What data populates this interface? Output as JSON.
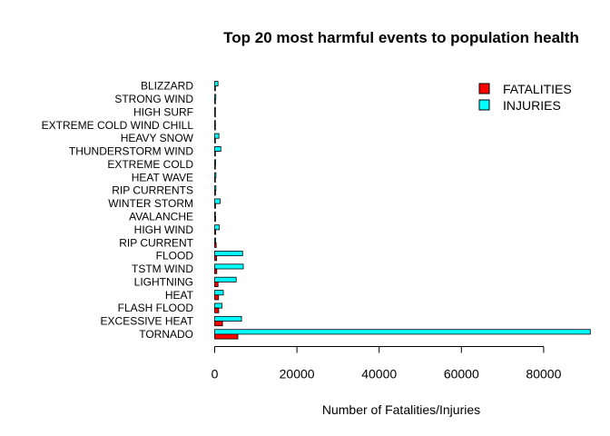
{
  "chart_data": {
    "type": "bar",
    "orientation": "horizontal",
    "title": "Top 20 most harmful events to population health",
    "xlabel": "Number of Fatalities/Injuries",
    "ylabel": "",
    "xlim": [
      0,
      91500
    ],
    "xticks": [
      0,
      20000,
      40000,
      60000,
      80000
    ],
    "xtick_labels": [
      "0",
      "20000",
      "40000",
      "60000",
      "80000"
    ],
    "legend_position": "top-right",
    "grid": false,
    "categories": [
      "TORNADO",
      "EXCESSIVE HEAT",
      "FLASH FLOOD",
      "HEAT",
      "LIGHTNING",
      "TSTM WIND",
      "FLOOD",
      "RIP CURRENT",
      "HIGH WIND",
      "AVALANCHE",
      "WINTER STORM",
      "RIP CURRENTS",
      "HEAT WAVE",
      "EXTREME COLD",
      "THUNDERSTORM WIND",
      "HEAVY SNOW",
      "EXTREME COLD WIND CHILL",
      "HIGH SURF",
      "STRONG WIND",
      "BLIZZARD"
    ],
    "series": [
      {
        "name": "FATALITIES",
        "color": "#ff0000",
        "values": [
          5633,
          1903,
          978,
          937,
          816,
          504,
          470,
          368,
          248,
          224,
          206,
          204,
          172,
          160,
          133,
          127,
          125,
          101,
          103,
          101
        ]
      },
      {
        "name": "INJURIES",
        "color": "#00ffff",
        "values": [
          91346,
          6525,
          1777,
          2100,
          5230,
          6957,
          6789,
          232,
          1137,
          170,
          1321,
          297,
          309,
          231,
          1488,
          1021,
          24,
          152,
          280,
          805
        ]
      }
    ]
  }
}
